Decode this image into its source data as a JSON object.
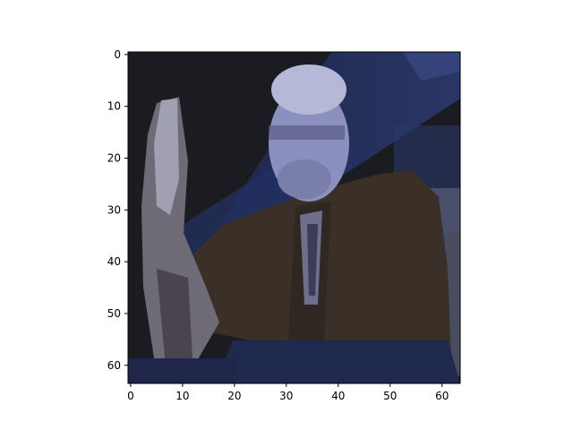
{
  "image_panel": {
    "description_colors": {
      "background_dark": "#1a1b22",
      "stripe_blue": "#24305e",
      "suit_brown": "#3b3027",
      "skin_lavender": "#8f93c2",
      "hair_light": "#b9bcd8",
      "podium_navy": "#1f2a4f"
    }
  },
  "axes": {
    "x_ticks": [
      "0",
      "10",
      "20",
      "30",
      "40",
      "50",
      "60"
    ],
    "y_ticks": [
      "0",
      "10",
      "20",
      "30",
      "40",
      "50",
      "60"
    ],
    "xlim": [
      -0.5,
      63.5
    ],
    "ylim": [
      63.5,
      -0.5
    ]
  }
}
